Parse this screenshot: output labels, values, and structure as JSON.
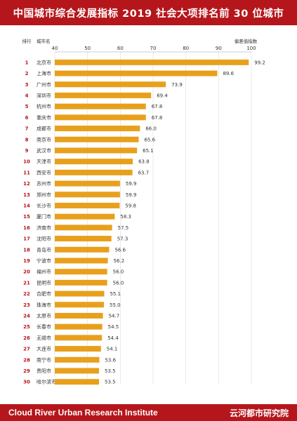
{
  "header": {
    "title": "中国城市综合发展指标 2019 社会大项排名前 30 位城市"
  },
  "footer": {
    "org_en": "Cloud River Urban Research Institute",
    "org_cn": "云河都市研究院"
  },
  "chart_data": {
    "type": "bar",
    "orientation": "horizontal",
    "title": "中国城市综合发展指标 2019 社会大项排名前 30 位城市",
    "rank_header": "排行",
    "category_header": "城市名",
    "value_header": "偏差值指数",
    "ranks": [
      "1",
      "2",
      "3",
      "4",
      "5",
      "6",
      "7",
      "8",
      "9",
      "10",
      "11",
      "12",
      "13",
      "14",
      "15",
      "16",
      "17",
      "18",
      "19",
      "20",
      "21",
      "22",
      "23",
      "24",
      "25",
      "26",
      "27",
      "28",
      "29",
      "30"
    ],
    "categories": [
      "北京市",
      "上海市",
      "广州市",
      "深圳市",
      "杭州市",
      "重庆市",
      "成都市",
      "南京市",
      "武汉市",
      "天津市",
      "西安市",
      "苏州市",
      "郑州市",
      "长沙市",
      "厦门市",
      "济南市",
      "沈阳市",
      "青岛市",
      "宁波市",
      "福州市",
      "昆明市",
      "合肥市",
      "珠海市",
      "太原市",
      "长春市",
      "无锡市",
      "大连市",
      "南宁市",
      "贵阳市",
      "哈尔滨市"
    ],
    "values": [
      99.2,
      89.6,
      73.9,
      69.4,
      67.8,
      67.8,
      66.0,
      65.6,
      65.1,
      63.8,
      63.7,
      59.9,
      59.9,
      59.8,
      58.3,
      57.5,
      57.3,
      56.6,
      56.2,
      56.0,
      56.0,
      55.1,
      55.0,
      54.7,
      54.5,
      54.4,
      54.1,
      53.6,
      53.5,
      53.5
    ],
    "value_labels": [
      "99.2",
      "89.6",
      "73.9",
      "69.4",
      "67.8",
      "67.8",
      "66.0",
      "65.6",
      "65.1",
      "63.8",
      "63.7",
      "59.9",
      "59.9",
      "59.8",
      "58.3",
      "57.5",
      "57.3",
      "56.6",
      "56.2",
      "56.0",
      "56.0",
      "55.1",
      "55.0",
      "54.7",
      "54.5",
      "54.4",
      "54.1",
      "53.6",
      "53.5",
      "53.5"
    ],
    "xlim": [
      40,
      100
    ],
    "xticks": [
      "40",
      "50",
      "60",
      "70",
      "80",
      "90",
      "100"
    ],
    "grid": true,
    "colors": {
      "bar": "#e8a01c",
      "rank": "#b5161b",
      "header": "#b5161b",
      "grid": "#dddddd"
    }
  }
}
